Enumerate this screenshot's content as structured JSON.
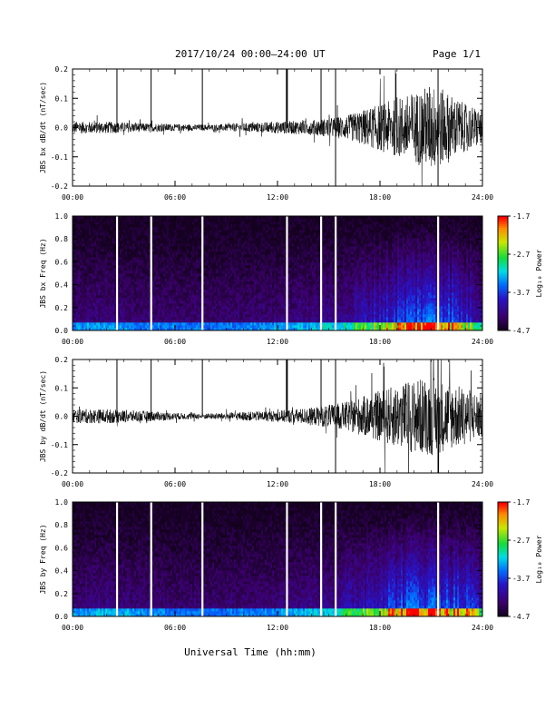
{
  "header": {
    "title": "2017/10/24  00:00–24:00 UT",
    "page": "Page 1/1"
  },
  "xaxis": {
    "label": "Universal Time (hh:mm)",
    "range_hours": [
      0,
      24
    ],
    "tick_hours": [
      0,
      6,
      12,
      18,
      24
    ],
    "ticks": [
      "00:00",
      "06:00",
      "12:00",
      "18:00",
      "24:00"
    ]
  },
  "colorbar": {
    "label": "Log₁₀ Power",
    "ticks": [
      "-1.7",
      "-2.7",
      "-3.7",
      "-4.7"
    ],
    "tick_values": [
      -1.7,
      -2.7,
      -3.7,
      -4.7
    ],
    "range": [
      -4.7,
      -1.7
    ]
  },
  "data_gaps_hours": [
    2.6,
    4.6,
    7.6,
    12.55,
    14.55,
    15.4,
    21.4
  ],
  "chart_data": [
    {
      "type": "line",
      "ylabel": "JBS bx dB/dt (nT/sec)",
      "ylim": [
        -0.2,
        0.2
      ],
      "yticks": [
        "0.2",
        "0.1",
        "0.0",
        "-0.1",
        "-0.2"
      ],
      "ytick_values": [
        0.2,
        0.1,
        0.0,
        -0.1,
        -0.2
      ],
      "envelope_hours": [
        0,
        2,
        4,
        6,
        8,
        10,
        12,
        14,
        16,
        17,
        18,
        19,
        20,
        21,
        22,
        23,
        24
      ],
      "envelope_amplitude": [
        0.02,
        0.02,
        0.015,
        0.012,
        0.01,
        0.015,
        0.02,
        0.025,
        0.04,
        0.06,
        0.08,
        0.1,
        0.12,
        0.15,
        0.12,
        0.08,
        0.06
      ]
    },
    {
      "type": "heatmap",
      "ylabel": "JBS bx Freq (Hz)",
      "ylim": [
        0,
        1
      ],
      "yticks": [
        "1.0",
        "0.8",
        "0.6",
        "0.4",
        "0.2",
        "0.0"
      ],
      "ytick_values": [
        1.0,
        0.8,
        0.6,
        0.4,
        0.2,
        0.0
      ],
      "zlim": [
        -4.7,
        -1.7
      ]
    },
    {
      "type": "line",
      "ylabel": "JBS by dB/dt (nT/sec)",
      "ylim": [
        -0.2,
        0.2
      ],
      "yticks": [
        "0.2",
        "0.1",
        "0.0",
        "-0.1",
        "-0.2"
      ],
      "ytick_values": [
        0.2,
        0.1,
        0.0,
        -0.1,
        -0.2
      ],
      "envelope_hours": [
        0,
        2,
        4,
        6,
        8,
        10,
        12,
        14,
        16,
        17,
        18,
        19,
        20,
        21,
        22,
        23,
        24
      ],
      "envelope_amplitude": [
        0.025,
        0.025,
        0.02,
        0.012,
        0.01,
        0.015,
        0.02,
        0.03,
        0.05,
        0.07,
        0.09,
        0.11,
        0.13,
        0.14,
        0.12,
        0.1,
        0.08
      ]
    },
    {
      "type": "heatmap",
      "ylabel": "JBS by Freq (Hz)",
      "ylim": [
        0,
        1
      ],
      "yticks": [
        "1.0",
        "0.8",
        "0.6",
        "0.4",
        "0.2",
        "0.0"
      ],
      "ytick_values": [
        1.0,
        0.8,
        0.6,
        0.4,
        0.2,
        0.0
      ],
      "zlim": [
        -4.7,
        -1.7
      ]
    }
  ]
}
